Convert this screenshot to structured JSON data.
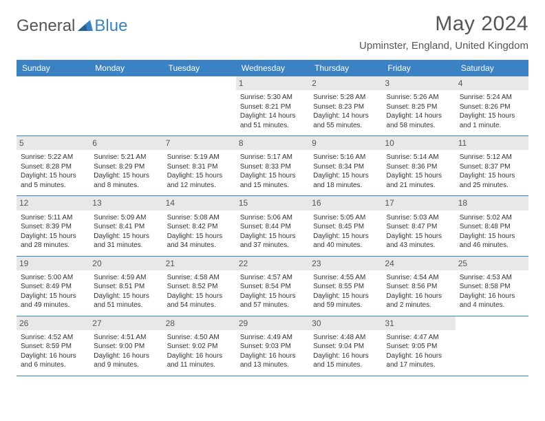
{
  "logo": {
    "text_dark": "General",
    "text_blue": "Blue"
  },
  "header": {
    "month_title": "May 2024",
    "location": "Upminster, England, United Kingdom"
  },
  "calendar": {
    "type": "table",
    "background_color": "#ffffff",
    "header_bg": "#3b82c4",
    "header_text_color": "#ffffff",
    "daynum_bg": "#e8e8e8",
    "border_color": "#3b82c4",
    "text_color": "#333333",
    "font_size_header": 12,
    "font_size_daynum": 12,
    "font_size_detail": 10,
    "day_names": [
      "Sunday",
      "Monday",
      "Tuesday",
      "Wednesday",
      "Thursday",
      "Friday",
      "Saturday"
    ],
    "weeks": [
      [
        {
          "num": "",
          "sunrise": "",
          "sunset": "",
          "daylight": ""
        },
        {
          "num": "",
          "sunrise": "",
          "sunset": "",
          "daylight": ""
        },
        {
          "num": "",
          "sunrise": "",
          "sunset": "",
          "daylight": ""
        },
        {
          "num": "1",
          "sunrise": "Sunrise: 5:30 AM",
          "sunset": "Sunset: 8:21 PM",
          "daylight": "Daylight: 14 hours and 51 minutes."
        },
        {
          "num": "2",
          "sunrise": "Sunrise: 5:28 AM",
          "sunset": "Sunset: 8:23 PM",
          "daylight": "Daylight: 14 hours and 55 minutes."
        },
        {
          "num": "3",
          "sunrise": "Sunrise: 5:26 AM",
          "sunset": "Sunset: 8:25 PM",
          "daylight": "Daylight: 14 hours and 58 minutes."
        },
        {
          "num": "4",
          "sunrise": "Sunrise: 5:24 AM",
          "sunset": "Sunset: 8:26 PM",
          "daylight": "Daylight: 15 hours and 1 minute."
        }
      ],
      [
        {
          "num": "5",
          "sunrise": "Sunrise: 5:22 AM",
          "sunset": "Sunset: 8:28 PM",
          "daylight": "Daylight: 15 hours and 5 minutes."
        },
        {
          "num": "6",
          "sunrise": "Sunrise: 5:21 AM",
          "sunset": "Sunset: 8:29 PM",
          "daylight": "Daylight: 15 hours and 8 minutes."
        },
        {
          "num": "7",
          "sunrise": "Sunrise: 5:19 AM",
          "sunset": "Sunset: 8:31 PM",
          "daylight": "Daylight: 15 hours and 12 minutes."
        },
        {
          "num": "8",
          "sunrise": "Sunrise: 5:17 AM",
          "sunset": "Sunset: 8:33 PM",
          "daylight": "Daylight: 15 hours and 15 minutes."
        },
        {
          "num": "9",
          "sunrise": "Sunrise: 5:16 AM",
          "sunset": "Sunset: 8:34 PM",
          "daylight": "Daylight: 15 hours and 18 minutes."
        },
        {
          "num": "10",
          "sunrise": "Sunrise: 5:14 AM",
          "sunset": "Sunset: 8:36 PM",
          "daylight": "Daylight: 15 hours and 21 minutes."
        },
        {
          "num": "11",
          "sunrise": "Sunrise: 5:12 AM",
          "sunset": "Sunset: 8:37 PM",
          "daylight": "Daylight: 15 hours and 25 minutes."
        }
      ],
      [
        {
          "num": "12",
          "sunrise": "Sunrise: 5:11 AM",
          "sunset": "Sunset: 8:39 PM",
          "daylight": "Daylight: 15 hours and 28 minutes."
        },
        {
          "num": "13",
          "sunrise": "Sunrise: 5:09 AM",
          "sunset": "Sunset: 8:41 PM",
          "daylight": "Daylight: 15 hours and 31 minutes."
        },
        {
          "num": "14",
          "sunrise": "Sunrise: 5:08 AM",
          "sunset": "Sunset: 8:42 PM",
          "daylight": "Daylight: 15 hours and 34 minutes."
        },
        {
          "num": "15",
          "sunrise": "Sunrise: 5:06 AM",
          "sunset": "Sunset: 8:44 PM",
          "daylight": "Daylight: 15 hours and 37 minutes."
        },
        {
          "num": "16",
          "sunrise": "Sunrise: 5:05 AM",
          "sunset": "Sunset: 8:45 PM",
          "daylight": "Daylight: 15 hours and 40 minutes."
        },
        {
          "num": "17",
          "sunrise": "Sunrise: 5:03 AM",
          "sunset": "Sunset: 8:47 PM",
          "daylight": "Daylight: 15 hours and 43 minutes."
        },
        {
          "num": "18",
          "sunrise": "Sunrise: 5:02 AM",
          "sunset": "Sunset: 8:48 PM",
          "daylight": "Daylight: 15 hours and 46 minutes."
        }
      ],
      [
        {
          "num": "19",
          "sunrise": "Sunrise: 5:00 AM",
          "sunset": "Sunset: 8:49 PM",
          "daylight": "Daylight: 15 hours and 49 minutes."
        },
        {
          "num": "20",
          "sunrise": "Sunrise: 4:59 AM",
          "sunset": "Sunset: 8:51 PM",
          "daylight": "Daylight: 15 hours and 51 minutes."
        },
        {
          "num": "21",
          "sunrise": "Sunrise: 4:58 AM",
          "sunset": "Sunset: 8:52 PM",
          "daylight": "Daylight: 15 hours and 54 minutes."
        },
        {
          "num": "22",
          "sunrise": "Sunrise: 4:57 AM",
          "sunset": "Sunset: 8:54 PM",
          "daylight": "Daylight: 15 hours and 57 minutes."
        },
        {
          "num": "23",
          "sunrise": "Sunrise: 4:55 AM",
          "sunset": "Sunset: 8:55 PM",
          "daylight": "Daylight: 15 hours and 59 minutes."
        },
        {
          "num": "24",
          "sunrise": "Sunrise: 4:54 AM",
          "sunset": "Sunset: 8:56 PM",
          "daylight": "Daylight: 16 hours and 2 minutes."
        },
        {
          "num": "25",
          "sunrise": "Sunrise: 4:53 AM",
          "sunset": "Sunset: 8:58 PM",
          "daylight": "Daylight: 16 hours and 4 minutes."
        }
      ],
      [
        {
          "num": "26",
          "sunrise": "Sunrise: 4:52 AM",
          "sunset": "Sunset: 8:59 PM",
          "daylight": "Daylight: 16 hours and 6 minutes."
        },
        {
          "num": "27",
          "sunrise": "Sunrise: 4:51 AM",
          "sunset": "Sunset: 9:00 PM",
          "daylight": "Daylight: 16 hours and 9 minutes."
        },
        {
          "num": "28",
          "sunrise": "Sunrise: 4:50 AM",
          "sunset": "Sunset: 9:02 PM",
          "daylight": "Daylight: 16 hours and 11 minutes."
        },
        {
          "num": "29",
          "sunrise": "Sunrise: 4:49 AM",
          "sunset": "Sunset: 9:03 PM",
          "daylight": "Daylight: 16 hours and 13 minutes."
        },
        {
          "num": "30",
          "sunrise": "Sunrise: 4:48 AM",
          "sunset": "Sunset: 9:04 PM",
          "daylight": "Daylight: 16 hours and 15 minutes."
        },
        {
          "num": "31",
          "sunrise": "Sunrise: 4:47 AM",
          "sunset": "Sunset: 9:05 PM",
          "daylight": "Daylight: 16 hours and 17 minutes."
        },
        {
          "num": "",
          "sunrise": "",
          "sunset": "",
          "daylight": ""
        }
      ]
    ]
  }
}
